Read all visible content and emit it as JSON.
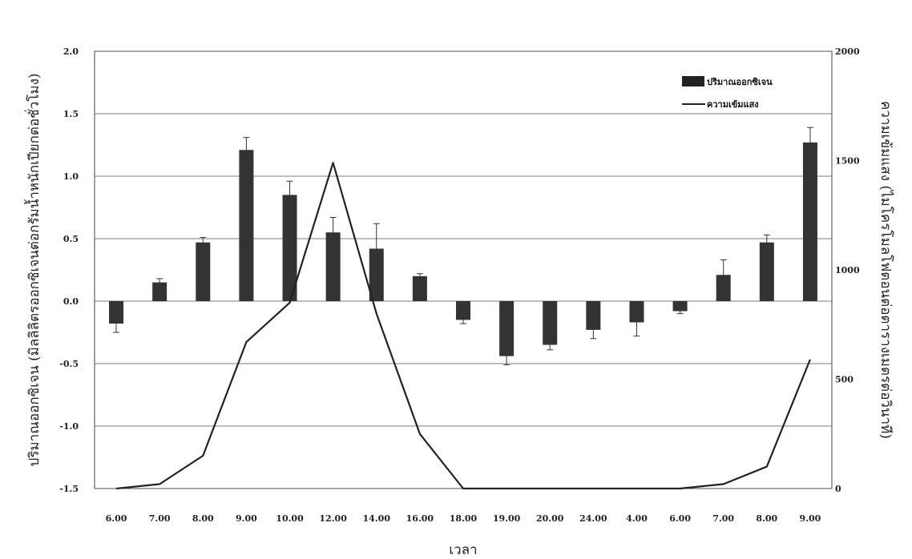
{
  "chart_data": {
    "type": "bar",
    "categories": [
      "6.00",
      "7.00",
      "8.00",
      "9.00",
      "10.00",
      "12.00",
      "14.00",
      "16.00",
      "18.00",
      "19.00",
      "20.00",
      "24.00",
      "4.00",
      "6.00",
      "7.00",
      "8.00",
      "9.00"
    ],
    "xlabel": "เวลา",
    "ylabel_left": "ปริมาณออกซิเจน (มิลลิลิตรออกซิเจนต่อกรัมน้ำหนักเปียกต่อชั่วโมง)",
    "ylabel_right": "ความเข้มแสง (ไมโครโมลโฟตอนต่อตารางเมตรต่อวินาที)",
    "ylim_left": [
      -1.5,
      2.0
    ],
    "yticks_left": [
      "2.0",
      "1.5",
      "1.0",
      "0.5",
      "0.0",
      "-0.5",
      "-1.0",
      "-1.5"
    ],
    "ylim_right": [
      0,
      2000
    ],
    "yticks_right": [
      "2000",
      "1500",
      "1000",
      "500",
      "0"
    ],
    "grid": true,
    "legend_position": "top-right",
    "series": [
      {
        "name": "ปริมาณออกซิเจน",
        "type": "bar",
        "axis": "left",
        "color": "#333333",
        "values": [
          -0.18,
          0.15,
          0.47,
          1.21,
          0.85,
          0.55,
          0.42,
          0.2,
          -0.15,
          -0.44,
          -0.35,
          -0.23,
          -0.17,
          -0.08,
          0.21,
          0.47,
          1.27
        ],
        "errors": [
          0.07,
          0.03,
          0.04,
          0.1,
          0.11,
          0.12,
          0.2,
          0.02,
          0.03,
          0.07,
          0.04,
          0.07,
          0.11,
          0.02,
          0.12,
          0.06,
          0.12
        ]
      },
      {
        "name": "ความเข้มแสง",
        "type": "line",
        "axis": "right",
        "color": "#222222",
        "values": [
          0,
          20,
          150,
          670,
          850,
          1490,
          800,
          250,
          0,
          0,
          0,
          0,
          0,
          0,
          20,
          100,
          590
        ]
      }
    ]
  }
}
